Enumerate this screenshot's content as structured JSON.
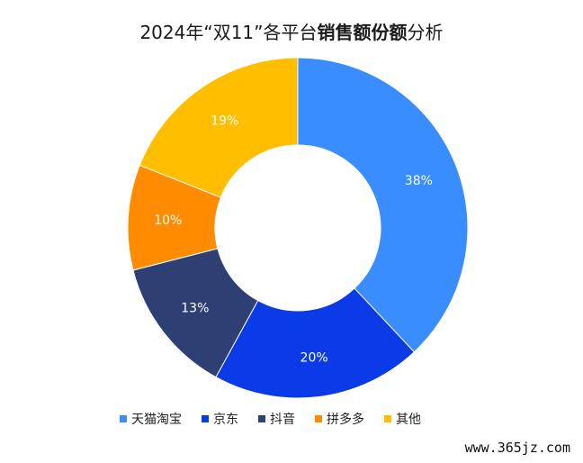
{
  "title": {
    "prefix": "2024年“双11”各平台",
    "bold": "销售额份额",
    "suffix": "分析"
  },
  "chart_data": {
    "type": "pie",
    "donut": true,
    "categories": [
      "天猫淘宝",
      "京东",
      "抖音",
      "拼多多",
      "其他"
    ],
    "values": [
      38,
      20,
      13,
      10,
      19
    ],
    "labels": [
      "38%",
      "20%",
      "13%",
      "10%",
      "19%"
    ],
    "colors": [
      "#3A8DFF",
      "#0B3BE6",
      "#2E3F73",
      "#FF8C00",
      "#FFBF00"
    ],
    "legend_position": "bottom",
    "start_angle": "top, clockwise"
  },
  "watermark": "www.365jz.com"
}
